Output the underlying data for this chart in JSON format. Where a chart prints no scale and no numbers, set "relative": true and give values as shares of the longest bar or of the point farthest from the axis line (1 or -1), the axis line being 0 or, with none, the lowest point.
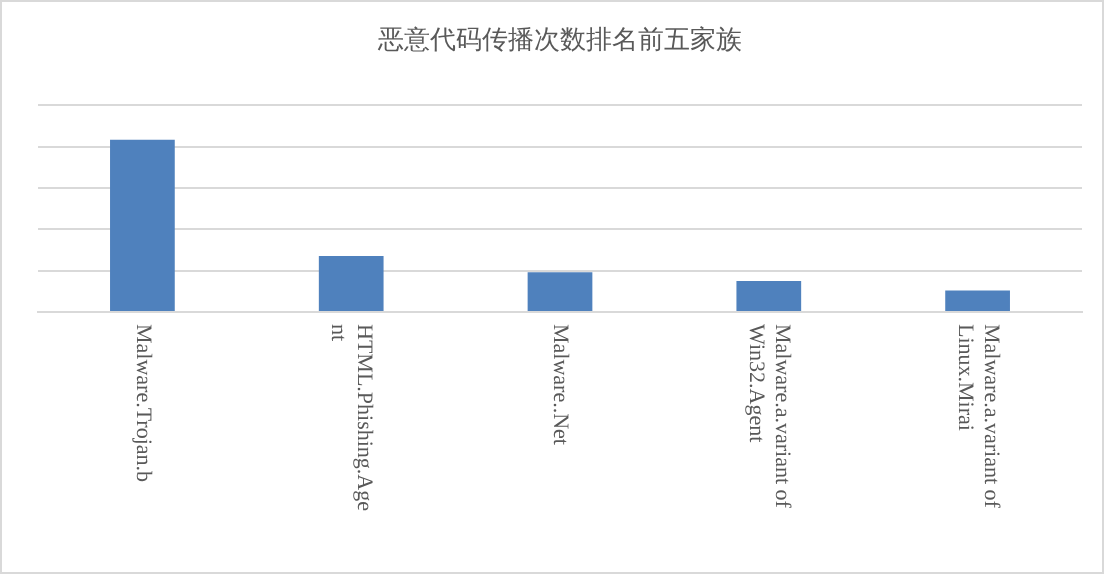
{
  "chart_data": {
    "type": "bar",
    "title": "恶意代码传播次数排名前五家族",
    "categories": [
      "Malware.Trojan.b",
      "HTML.Phishing.Agent",
      "Malware..Net",
      "Malware.a.variant of Win32.Agent",
      "Malware.a.variant of Linux.Mirai"
    ],
    "values": [
      1,
      0.325,
      0.23,
      0.18,
      0.125
    ],
    "color": "#4f81bd",
    "relative": true,
    "grid": "y",
    "legend": false
  }
}
